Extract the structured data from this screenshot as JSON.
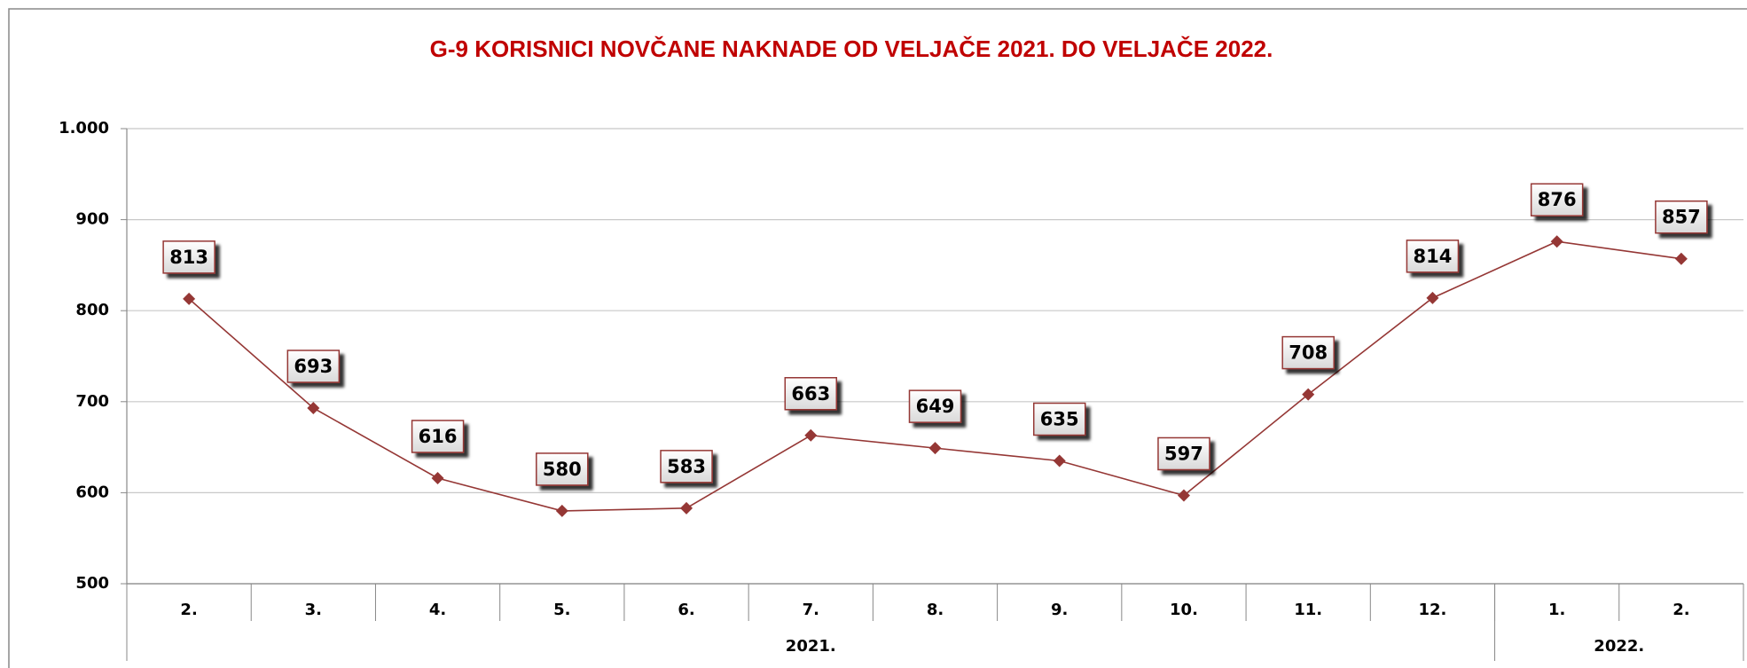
{
  "chart_data": {
    "type": "line",
    "title": "G-9 KORISNICI NOVČANE NAKNADE OD VELJAČE 2021. DO VELJAČE 2022.",
    "categories": [
      "2.",
      "3.",
      "4.",
      "5.",
      "6.",
      "7.",
      "8.",
      "9.",
      "10.",
      "11.",
      "12.",
      "1.",
      "2."
    ],
    "category_groups": [
      {
        "label": "2021.",
        "count": 11
      },
      {
        "label": "2022.",
        "count": 2
      }
    ],
    "series": [
      {
        "name": "Korisnici",
        "color": "#953735",
        "values": [
          813,
          693,
          616,
          580,
          583,
          663,
          649,
          635,
          597,
          708,
          814,
          876,
          857
        ]
      }
    ],
    "ylim": [
      500,
      1000
    ],
    "yticks": [
      500,
      600,
      700,
      800,
      900,
      {
        "value": 1000,
        "label": "1.000"
      }
    ],
    "grid": true
  }
}
